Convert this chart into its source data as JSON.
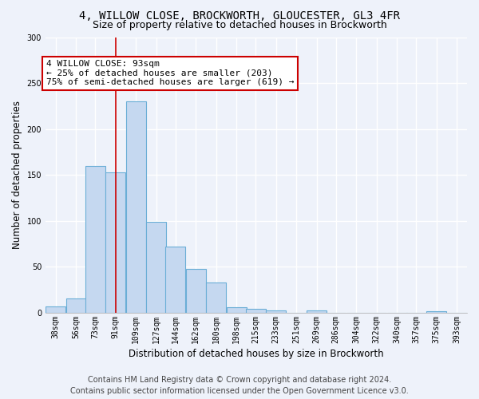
{
  "title_line1": "4, WILLOW CLOSE, BROCKWORTH, GLOUCESTER, GL3 4FR",
  "title_line2": "Size of property relative to detached houses in Brockworth",
  "xlabel": "Distribution of detached houses by size in Brockworth",
  "ylabel": "Number of detached properties",
  "bin_centers": [
    38,
    56,
    73,
    91,
    109,
    127,
    144,
    162,
    180,
    198,
    215,
    233,
    251,
    269,
    286,
    304,
    322,
    340,
    357,
    375,
    393
  ],
  "bin_labels": [
    "38sqm",
    "56sqm",
    "73sqm",
    "91sqm",
    "109sqm",
    "127sqm",
    "144sqm",
    "162sqm",
    "180sqm",
    "198sqm",
    "215sqm",
    "233sqm",
    "251sqm",
    "269sqm",
    "286sqm",
    "304sqm",
    "322sqm",
    "340sqm",
    "357sqm",
    "375sqm",
    "393sqm"
  ],
  "values": [
    7,
    16,
    160,
    153,
    230,
    99,
    72,
    48,
    33,
    6,
    4,
    3,
    0,
    3,
    0,
    0,
    0,
    0,
    0,
    2,
    0
  ],
  "bar_color": "#c5d8f0",
  "bar_edge_color": "#6aaed6",
  "annotation_box_color": "#ffffff",
  "annotation_border_color": "#cc0000",
  "annotation_text_line1": "4 WILLOW CLOSE: 93sqm",
  "annotation_text_line2": "← 25% of detached houses are smaller (203)",
  "annotation_text_line3": "75% of semi-detached houses are larger (619) →",
  "vline_x_index": 3,
  "ylim": [
    0,
    300
  ],
  "yticks": [
    0,
    50,
    100,
    150,
    200,
    250,
    300
  ],
  "footer_line1": "Contains HM Land Registry data © Crown copyright and database right 2024.",
  "footer_line2": "Contains public sector information licensed under the Open Government Licence v3.0.",
  "background_color": "#eef2fa",
  "grid_color": "#ffffff",
  "title_fontsize": 10,
  "subtitle_fontsize": 9,
  "axis_label_fontsize": 8.5,
  "tick_fontsize": 7,
  "footer_fontsize": 7,
  "annotation_fontsize": 8
}
